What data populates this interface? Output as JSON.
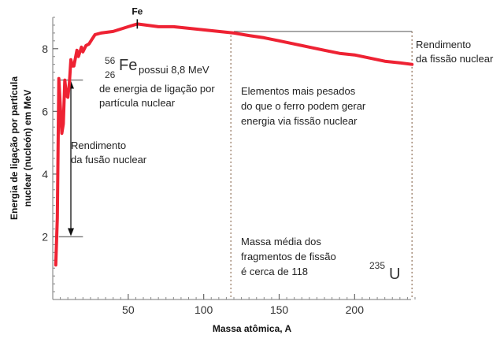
{
  "chart_data": {
    "type": "line",
    "xlabel": "Massa atômica, A",
    "ylabel_lines": [
      "Energia de ligação por partícula",
      "nuclear (nucleón) em MeV"
    ],
    "xlim": [
      0,
      240
    ],
    "ylim": [
      0,
      9
    ],
    "x_ticks": [
      50,
      100,
      150,
      200
    ],
    "y_ticks": [
      2,
      4,
      6,
      8
    ],
    "x_minor_step": 5,
    "y_minor_step": 0.25,
    "line_color": "#ee2233",
    "series": [
      {
        "points": [
          [
            2,
            1.1
          ],
          [
            3,
            2.6
          ],
          [
            4,
            7.05
          ],
          [
            6,
            5.3
          ],
          [
            7,
            5.6
          ],
          [
            8,
            7.0
          ],
          [
            9,
            6.5
          ],
          [
            10,
            6.45
          ],
          [
            11,
            6.9
          ],
          [
            12,
            7.65
          ],
          [
            13,
            7.45
          ],
          [
            14,
            7.45
          ],
          [
            16,
            7.95
          ],
          [
            17,
            7.75
          ],
          [
            19,
            8.05
          ],
          [
            20,
            7.9
          ],
          [
            22,
            8.1
          ],
          [
            24,
            8.15
          ],
          [
            26,
            8.3
          ],
          [
            28,
            8.45
          ],
          [
            32,
            8.5
          ],
          [
            40,
            8.55
          ],
          [
            50,
            8.7
          ],
          [
            56,
            8.79
          ],
          [
            62,
            8.75
          ],
          [
            70,
            8.7
          ],
          [
            80,
            8.7
          ],
          [
            90,
            8.65
          ],
          [
            100,
            8.6
          ],
          [
            110,
            8.55
          ],
          [
            120,
            8.5
          ],
          [
            130,
            8.42
          ],
          [
            140,
            8.35
          ],
          [
            150,
            8.25
          ],
          [
            160,
            8.15
          ],
          [
            170,
            8.05
          ],
          [
            180,
            7.95
          ],
          [
            190,
            7.85
          ],
          [
            200,
            7.8
          ],
          [
            210,
            7.7
          ],
          [
            220,
            7.6
          ],
          [
            230,
            7.55
          ],
          [
            238,
            7.5
          ]
        ]
      }
    ],
    "fe_marker": {
      "x": 56,
      "label": "Fe"
    },
    "fission_yield_line": {
      "y": 8.55,
      "x_from": 120,
      "x_to": 238
    },
    "fusion_markers": {
      "x_from": 4,
      "x_to": 20,
      "y_top": 7.0,
      "y_bottom": 2.0
    },
    "dotted_lines": [
      118,
      238
    ],
    "annotations": {
      "fe_iso_mass": "56",
      "fe_iso_atomic": "26",
      "fe_iso_symbol": "Fe",
      "fe_text_1": "possui 8,8 MeV",
      "fe_text_2": "de energia de ligação por",
      "fe_text_3": "partícula nuclear",
      "fusion_1": "Rendimento",
      "fusion_2": "da fusão nuclear",
      "fission_1": "Rendimento",
      "fission_2": "da fissão nuclear",
      "heavier_1": "Elementos mais pesados",
      "heavier_2": "do que o ferro podem gerar",
      "heavier_3": "energia via fissão nuclear",
      "mean_1": "Massa média dos",
      "mean_2": "fragmentos de fissão",
      "mean_3": "é cerca de 118",
      "u_mass": "235",
      "u_symbol": "U"
    }
  }
}
